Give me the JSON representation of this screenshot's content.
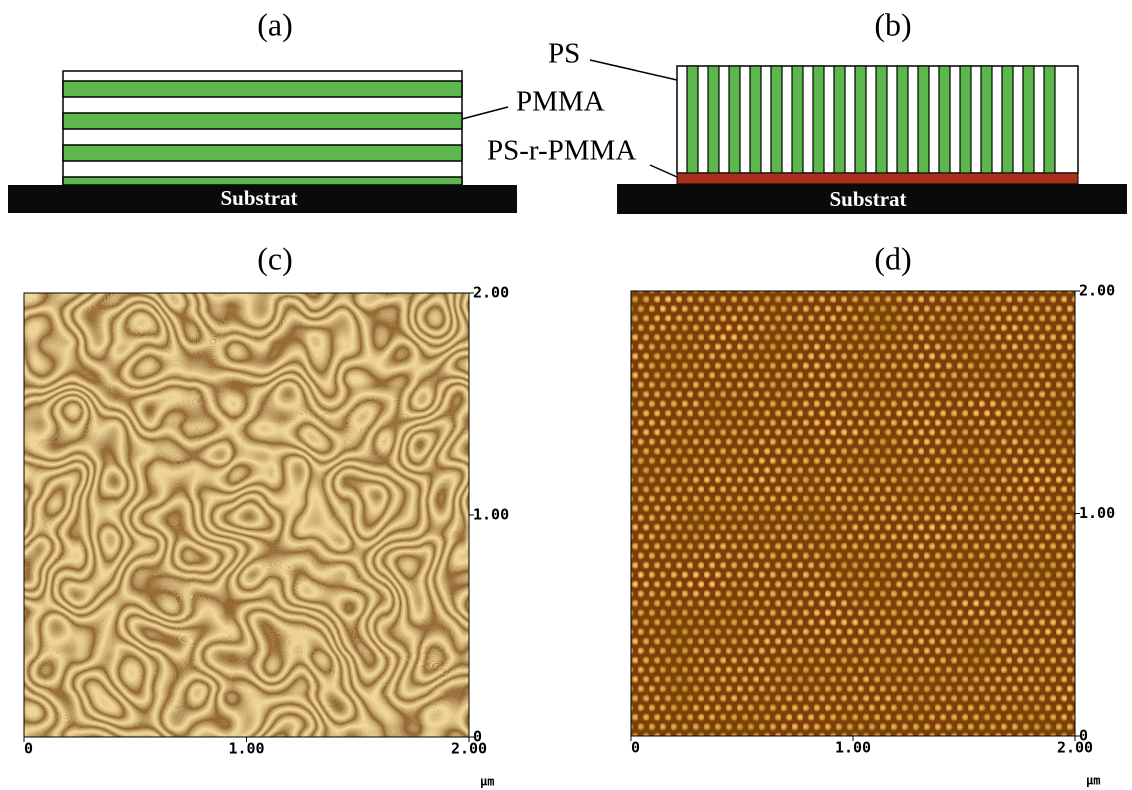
{
  "a": {
    "label": "(a)",
    "substrate": "Substrat",
    "layer": "PMMA"
  },
  "b": {
    "label": "(b)",
    "substrate": "Substrat",
    "top_layer": "PS",
    "brush_layer": "PS-r-PMMA"
  },
  "c": {
    "label": "(c)",
    "x_ticks": [
      "0",
      "1.00",
      "2.00"
    ],
    "y_ticks": [
      "0",
      "1.00",
      "2.00"
    ],
    "unit": "µm"
  },
  "d": {
    "label": "(d)",
    "x_ticks": [
      "0",
      "1.00",
      "2.00"
    ],
    "y_ticks": [
      "0",
      "1.00",
      "2.00"
    ],
    "unit": "µm"
  }
}
